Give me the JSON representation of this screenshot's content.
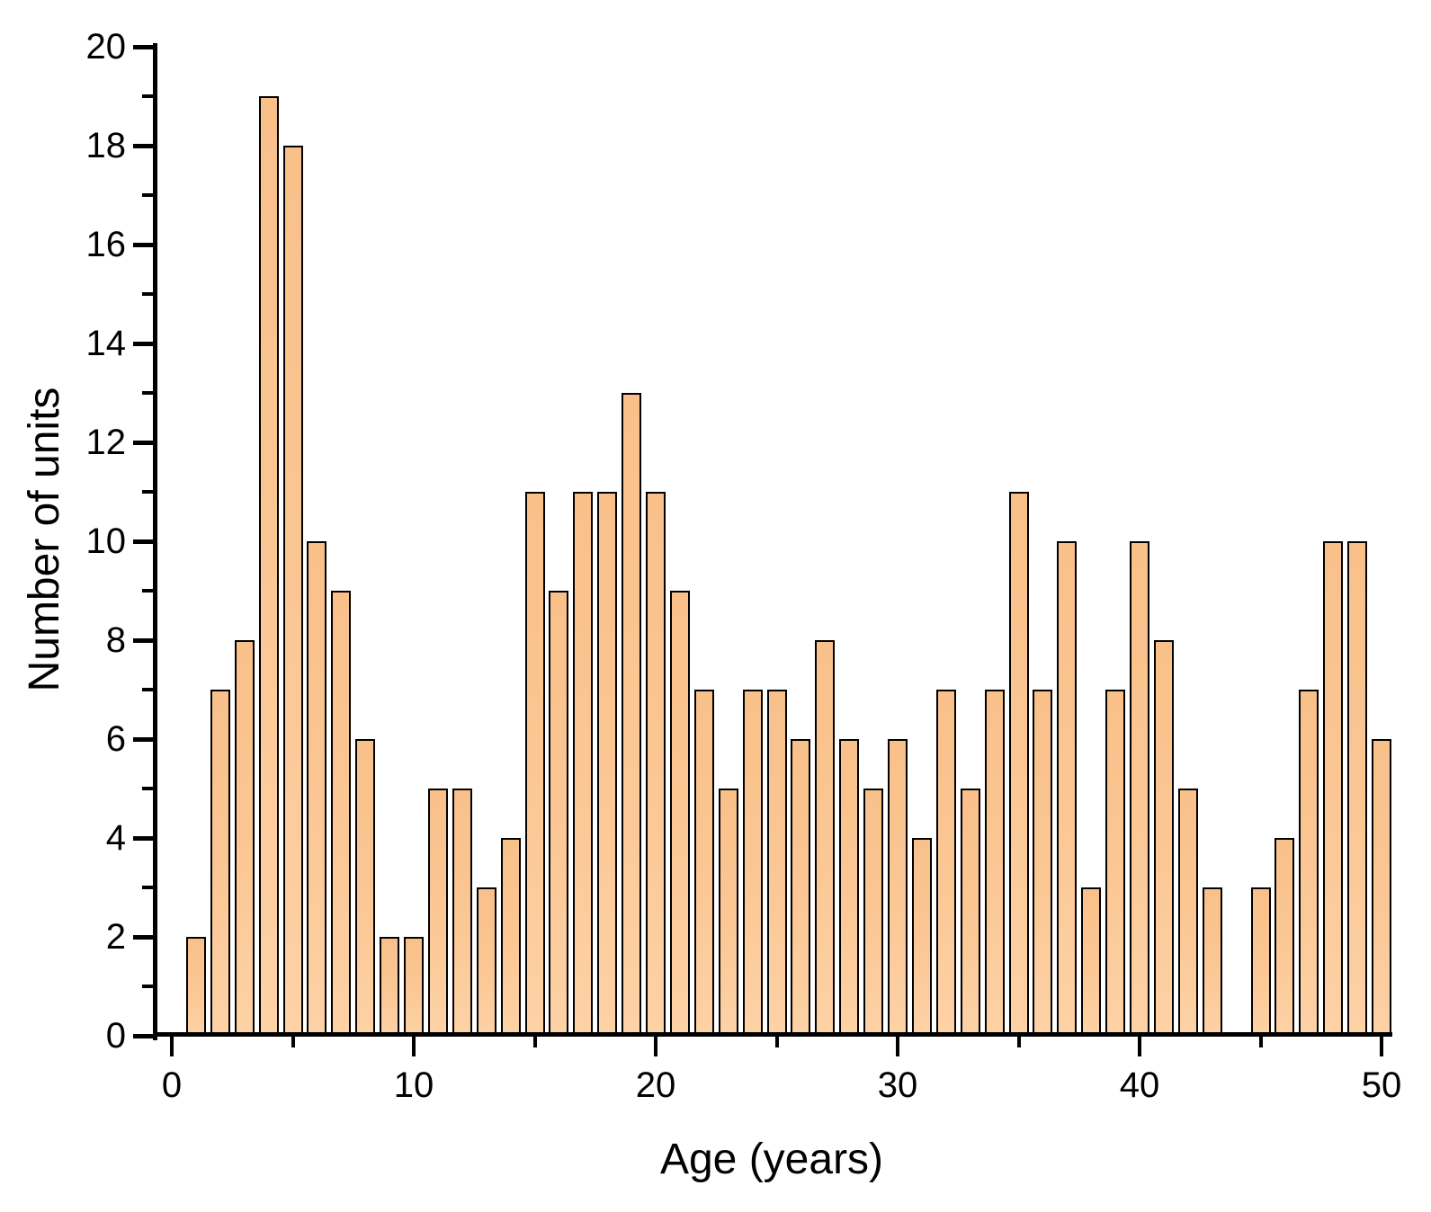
{
  "chart_data": {
    "type": "bar",
    "title": "",
    "xlabel": "Age (years)",
    "ylabel": "Number of units",
    "categories": [
      1,
      2,
      3,
      4,
      5,
      6,
      7,
      8,
      9,
      10,
      11,
      12,
      13,
      14,
      15,
      16,
      17,
      18,
      19,
      20,
      21,
      22,
      23,
      24,
      25,
      26,
      27,
      28,
      29,
      30,
      31,
      32,
      33,
      34,
      35,
      36,
      37,
      38,
      39,
      40,
      41,
      42,
      43,
      44,
      45,
      46,
      47,
      48,
      49,
      50
    ],
    "values": [
      2,
      7,
      8,
      19,
      18,
      10,
      9,
      6,
      2,
      2,
      5,
      5,
      3,
      4,
      11,
      9,
      11,
      11,
      13,
      11,
      9,
      7,
      5,
      7,
      7,
      6,
      8,
      6,
      5,
      6,
      4,
      7,
      5,
      7,
      11,
      7,
      10,
      3,
      7,
      10,
      8,
      5,
      3,
      null,
      3,
      4,
      7,
      10,
      10,
      6
    ],
    "xlim": [
      -0.7,
      50.6
    ],
    "ylim": [
      0,
      20
    ],
    "x_major_ticks": [
      0,
      10,
      20,
      30,
      40,
      50
    ],
    "x_minor_ticks": [
      5,
      15,
      25,
      35,
      45
    ],
    "y_major_ticks": [
      0,
      2,
      4,
      6,
      8,
      10,
      12,
      14,
      16,
      18,
      20
    ],
    "y_minor_ticks": [
      1,
      3,
      5,
      7,
      9,
      11,
      13,
      15,
      17,
      19
    ],
    "grid": false,
    "legend": null,
    "colors": {
      "bar_fill_top": "#f9c08a",
      "bar_fill_bottom": "#fdd2a6",
      "bar_border": "#000000",
      "axis": "#000000",
      "background": "#ffffff"
    }
  }
}
